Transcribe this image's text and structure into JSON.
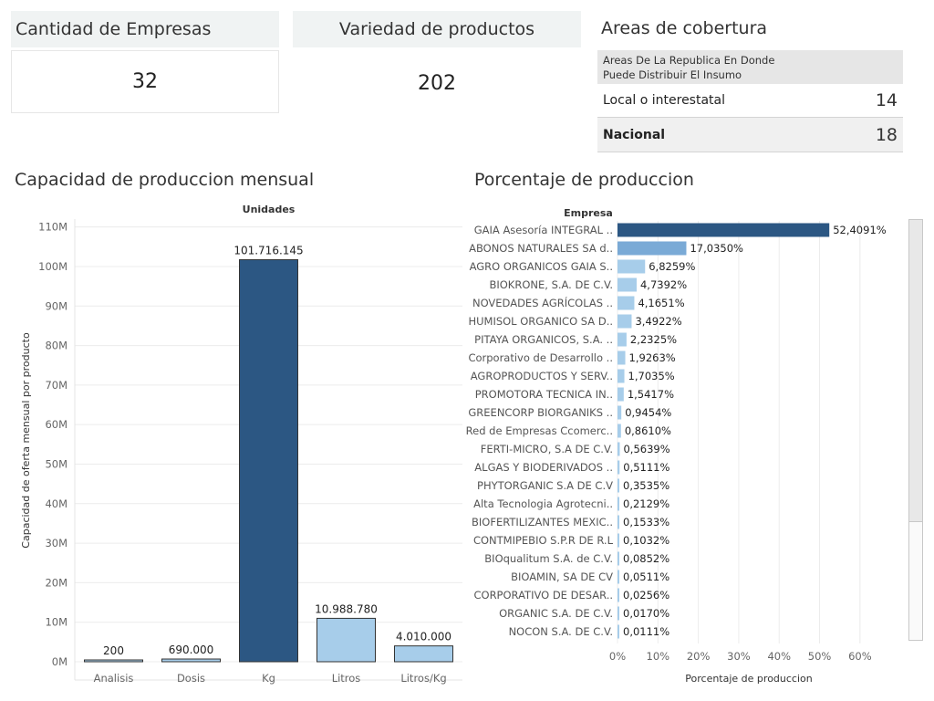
{
  "kpis": {
    "empresas": {
      "title": "Cantidad de Empresas",
      "value": "32"
    },
    "productos": {
      "title": "Variedad de productos",
      "value": "202"
    }
  },
  "coverage": {
    "title": "Areas de cobertura",
    "header": [
      "Areas De La Republica En Donde",
      "Puede Distribuir El Insumo"
    ],
    "rows": [
      {
        "label": "Local o interestatal",
        "value": "14"
      },
      {
        "label": "Nacional",
        "value": "18"
      }
    ]
  },
  "colors": {
    "dark_blue": "#2c5783",
    "mid_blue": "#7aaad6",
    "light_blue": "#a7cdea",
    "grid": "#ececec"
  },
  "capacidad": {
    "title": "Capacidad de produccion mensual"
  },
  "porcentaje": {
    "title": "Porcentaje de produccion"
  },
  "chart_data": [
    {
      "type": "bar",
      "title": "Capacidad de produccion mensual",
      "column_header": "Unidades",
      "ylabel": "Capacidad de oferta mensual por producto",
      "xlabel": "",
      "categories": [
        "Analisis",
        "Dosis",
        "Kg",
        "Litros",
        "Litros/Kg"
      ],
      "values": [
        200,
        690000,
        101716145,
        10988780,
        4010000
      ],
      "data_labels": [
        "200",
        "690.000",
        "101.716.145",
        "10.988.780",
        "4.010.000"
      ],
      "ylim": [
        0,
        112000000
      ],
      "yticks": [
        0,
        10000000,
        20000000,
        30000000,
        40000000,
        50000000,
        60000000,
        70000000,
        80000000,
        90000000,
        100000000,
        110000000
      ],
      "ytick_labels": [
        "0M",
        "10M",
        "20M",
        "30M",
        "40M",
        "50M",
        "60M",
        "70M",
        "80M",
        "90M",
        "100M",
        "110M"
      ],
      "grid": true,
      "bar_colors": [
        "#a7cdea",
        "#a7cdea",
        "#2c5783",
        "#a7cdea",
        "#a7cdea"
      ]
    },
    {
      "type": "bar",
      "orientation": "horizontal",
      "title": "Porcentaje de produccion",
      "row_header": "Empresa",
      "xlabel": "Porcentaje de produccion",
      "categories": [
        "GAIA Asesoría INTEGRAL ..",
        "ABONOS NATURALES SA d..",
        "AGRO ORGANICOS GAIA S..",
        "BIOKRONE, S.A. DE C.V.",
        "NOVEDADES AGRÍCOLAS ..",
        "HUMISOL ORGANICO SA D..",
        "PITAYA ORGANICOS, S.A. ..",
        "Corporativo de Desarrollo ..",
        "AGROPRODUCTOS Y SERV..",
        "PROMOTORA TECNICA IN..",
        "GREENCORP BIORGANIKS ..",
        "Red de Empresas Ccomerc..",
        "FERTI-MICRO, S.A DE C.V.",
        "ALGAS Y BIODERIVADOS ..",
        "PHYTORGANIC S.A DE C.V",
        "Alta Tecnologia Agrotecni..",
        "BIOFERTILIZANTES MEXIC..",
        "CONTMIPEBIO S.P.R DE R.L",
        "BIOqualitum S.A. de C.V.",
        "BIOAMIN, SA DE CV",
        "CORPORATIVO DE DESAR..",
        "ORGANIC S.A. DE C.V.",
        "NOCON S.A. DE C.V."
      ],
      "values": [
        52.4091,
        17.035,
        6.8259,
        4.7392,
        4.1651,
        3.4922,
        2.2325,
        1.9263,
        1.7035,
        1.5417,
        0.9454,
        0.861,
        0.5639,
        0.5111,
        0.3535,
        0.2129,
        0.1533,
        0.1032,
        0.0852,
        0.0511,
        0.0256,
        0.017,
        0.0111
      ],
      "data_labels": [
        "52,4091%",
        "17,0350%",
        "6,8259%",
        "4,7392%",
        "4,1651%",
        "3,4922%",
        "2,2325%",
        "1,9263%",
        "1,7035%",
        "1,5417%",
        "0,9454%",
        "0,8610%",
        "0,5639%",
        "0,5111%",
        "0,3535%",
        "0,2129%",
        "0,1533%",
        "0,1032%",
        "0,0852%",
        "0,0511%",
        "0,0256%",
        "0,0170%",
        "0,0111%"
      ],
      "xlim": [
        0,
        65
      ],
      "xticks": [
        0,
        10,
        20,
        30,
        40,
        50,
        60
      ],
      "xtick_labels": [
        "0%",
        "10%",
        "20%",
        "30%",
        "40%",
        "50%",
        "60%"
      ],
      "grid": true,
      "bar_colors": [
        "#2c5783",
        "#7aaad6",
        "#a7cdea",
        "#a7cdea",
        "#a7cdea",
        "#a7cdea",
        "#a7cdea",
        "#a7cdea",
        "#a7cdea",
        "#a7cdea",
        "#a7cdea",
        "#a7cdea",
        "#a7cdea",
        "#a7cdea",
        "#a7cdea",
        "#a7cdea",
        "#a7cdea",
        "#a7cdea",
        "#a7cdea",
        "#a7cdea",
        "#a7cdea",
        "#a7cdea",
        "#a7cdea"
      ]
    }
  ]
}
